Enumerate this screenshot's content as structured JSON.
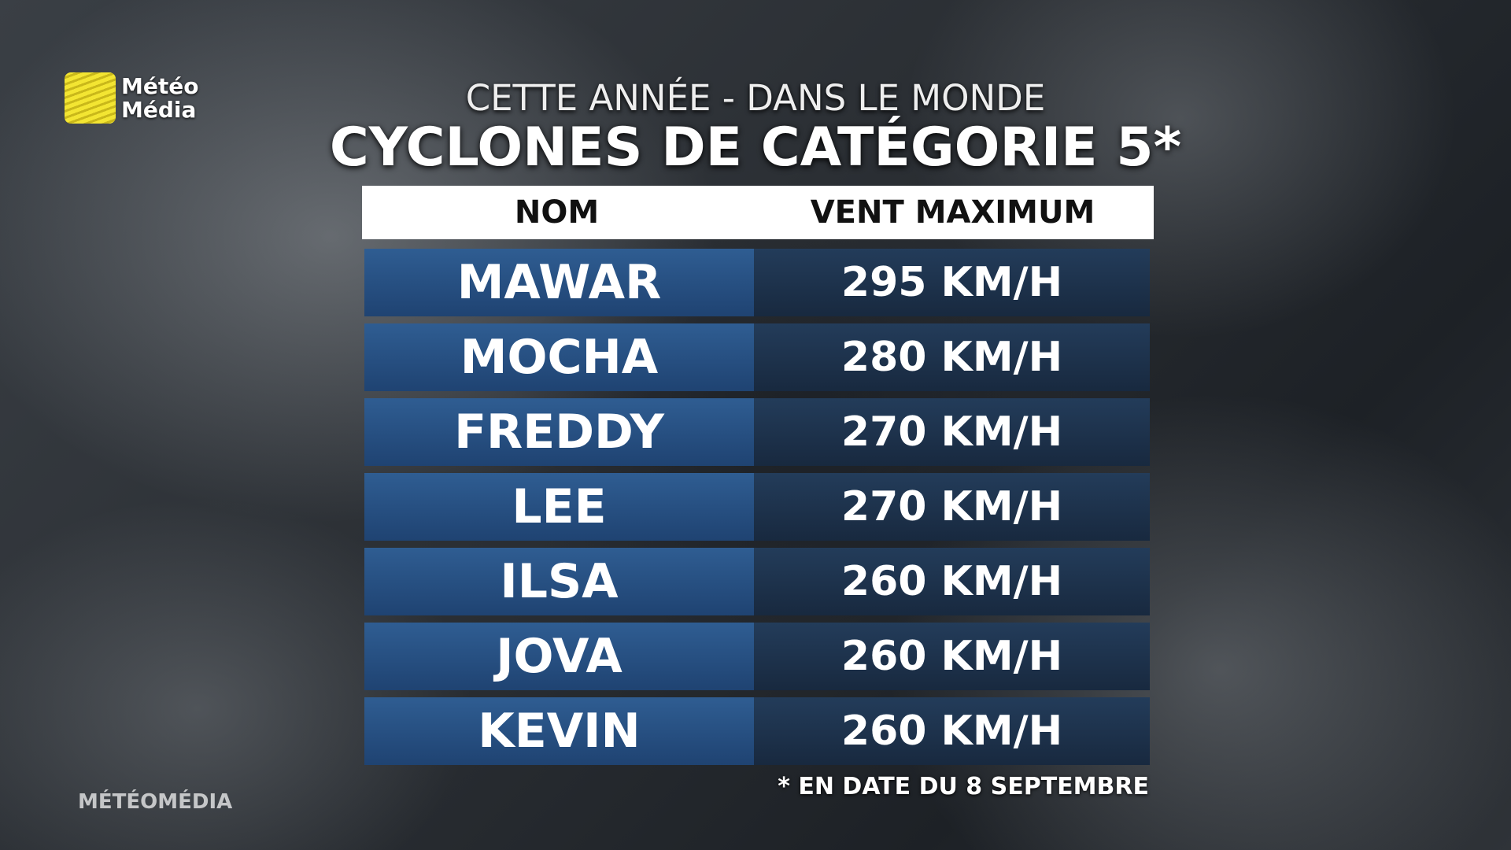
{
  "logo": {
    "line1": "Météo",
    "line2": "Média"
  },
  "subtitle": "CETTE ANNÉE - DANS LE MONDE",
  "title": "CYCLONES DE CATÉGORIE 5*",
  "table": {
    "header": [
      "NOM",
      "VENT MAXIMUM"
    ],
    "rows": [
      [
        "MAWAR",
        "295 KM/H"
      ],
      [
        "MOCHA",
        "280 KM/H"
      ],
      [
        "FREDDY",
        "270 KM/H"
      ],
      [
        "LEE",
        "270 KM/H"
      ],
      [
        "ILSA",
        "260 KM/H"
      ],
      [
        "JOVA",
        "260 KM/H"
      ],
      [
        "KEVIN",
        "260 KM/H"
      ]
    ]
  },
  "footnote": "* EN DATE DU 8 SEPTEMBRE",
  "watermark": "MÉTÉOMÉDIA"
}
